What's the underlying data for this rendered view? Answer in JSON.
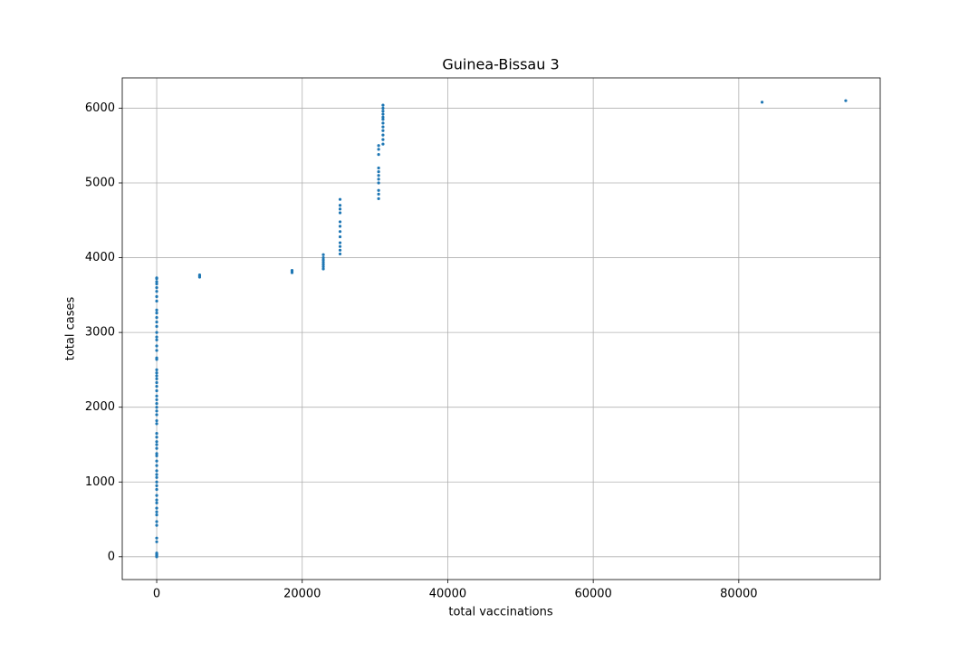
{
  "chart_data": {
    "type": "scatter",
    "title": "Guinea-Bissau 3",
    "x_label": "total vaccinations",
    "y_label": "total cases",
    "color": "#1f77b4",
    "grid": true,
    "xlim": [
      -4735,
      99435
    ],
    "ylim": [
      -305,
      6405
    ],
    "xticks": [
      0,
      20000,
      40000,
      60000,
      80000
    ],
    "yticks": [
      0,
      1000,
      2000,
      3000,
      4000,
      5000,
      6000
    ],
    "x": [
      0,
      0,
      0,
      0,
      0,
      0,
      0,
      0,
      0,
      0,
      0,
      0,
      0,
      0,
      0,
      0,
      0,
      0,
      0,
      0,
      0,
      0,
      0,
      0,
      0,
      0,
      0,
      0,
      0,
      0,
      0,
      0,
      0,
      0,
      0,
      0,
      0,
      0,
      0,
      0,
      0,
      0,
      0,
      0,
      0,
      0,
      0,
      0,
      0,
      0,
      0,
      0,
      0,
      0,
      0,
      0,
      0,
      0,
      0,
      0,
      0,
      0,
      0,
      0,
      0,
      0,
      5900,
      5900,
      5900,
      18600,
      18600,
      18600,
      22900,
      22900,
      22900,
      22900,
      22900,
      22900,
      22900,
      25200,
      25200,
      25200,
      25200,
      25200,
      25200,
      25200,
      25200,
      25200,
      25200,
      25200,
      25200,
      30500,
      30500,
      30500,
      30500,
      30500,
      30500,
      30500,
      30500,
      30500,
      30500,
      30500,
      31100,
      31100,
      31100,
      31100,
      31100,
      31100,
      31100,
      31100,
      31100,
      31100,
      31100,
      31100,
      83200,
      94700
    ],
    "values": [
      0,
      10,
      20,
      30,
      40,
      50,
      200,
      250,
      420,
      470,
      560,
      600,
      650,
      720,
      760,
      820,
      900,
      950,
      1000,
      1060,
      1100,
      1150,
      1220,
      1280,
      1350,
      1380,
      1450,
      1500,
      1540,
      1600,
      1650,
      1780,
      1820,
      1900,
      1950,
      2000,
      2050,
      2100,
      2150,
      2220,
      2280,
      2330,
      2380,
      2420,
      2460,
      2500,
      2640,
      2660,
      2760,
      2820,
      2900,
      2940,
      3000,
      3080,
      3140,
      3200,
      3260,
      3300,
      3420,
      3480,
      3550,
      3600,
      3650,
      3680,
      3720,
      3730,
      3740,
      3755,
      3770,
      3800,
      3815,
      3830,
      3850,
      3880,
      3910,
      3940,
      3970,
      4000,
      4040,
      4050,
      4100,
      4150,
      4200,
      4280,
      4350,
      4420,
      4480,
      4600,
      4650,
      4700,
      4780,
      4790,
      4850,
      4900,
      5000,
      5050,
      5100,
      5150,
      5200,
      5380,
      5450,
      5500,
      5520,
      5580,
      5640,
      5700,
      5750,
      5800,
      5850,
      5880,
      5920,
      5960,
      6000,
      6040,
      6080,
      6100
    ]
  }
}
